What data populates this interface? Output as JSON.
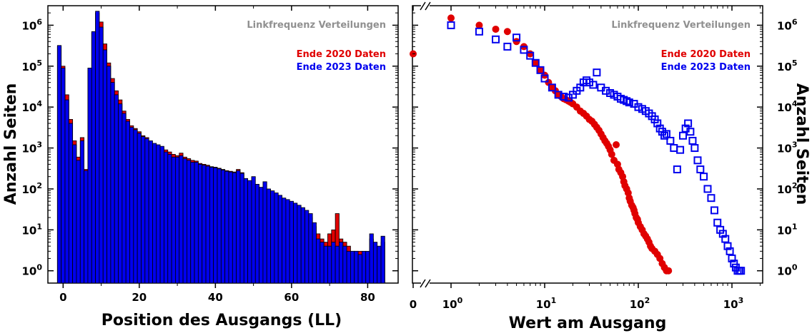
{
  "chart_data": [
    {
      "type": "bar",
      "panel": "left",
      "note": "Linkfrequenz Verteilungen",
      "xlabel": "Position des Ausgangs (LL)",
      "ylabel": "Anzahl Seiten",
      "y_scale": "log",
      "xlim": [
        -4,
        88
      ],
      "ylim": [
        0.5,
        3000000
      ],
      "x_ticks": [
        "0",
        "20",
        "40",
        "60",
        "80"
      ],
      "y_ticks": [
        "10",
        "10",
        "10",
        "10",
        "10",
        "10",
        "10"
      ],
      "y_tick_exponents": [
        "0",
        "1",
        "2",
        "3",
        "4",
        "5",
        "6"
      ],
      "categories": [
        -1,
        0,
        1,
        2,
        3,
        4,
        5,
        6,
        7,
        8,
        9,
        10,
        11,
        12,
        13,
        14,
        15,
        16,
        17,
        18,
        19,
        20,
        21,
        22,
        23,
        24,
        25,
        26,
        27,
        28,
        29,
        30,
        31,
        32,
        33,
        34,
        35,
        36,
        37,
        38,
        39,
        40,
        41,
        42,
        43,
        44,
        45,
        46,
        47,
        48,
        49,
        50,
        51,
        52,
        53,
        54,
        55,
        56,
        57,
        58,
        59,
        60,
        61,
        62,
        63,
        64,
        65,
        66,
        67,
        68,
        69,
        70,
        71,
        72,
        73,
        74,
        75,
        76,
        77,
        78,
        79,
        80,
        81,
        82,
        83,
        84
      ],
      "series": [
        {
          "name": "Ende 2020 Daten",
          "color": "#e00000",
          "values": [
            300000,
            100000,
            20000,
            5000,
            1500,
            600,
            1800,
            300,
            80000,
            650000,
            2000000,
            1200000,
            350000,
            120000,
            50000,
            25000,
            15000,
            8000,
            5000,
            3500,
            3000,
            2500,
            2000,
            1800,
            1300,
            1200,
            1100,
            1000,
            900,
            800,
            700,
            650,
            750,
            600,
            550,
            500,
            480,
            420,
            400,
            380,
            350,
            340,
            320,
            300,
            280,
            270,
            260,
            300,
            250,
            160,
            140,
            130,
            110,
            100,
            100,
            90,
            80,
            70,
            60,
            55,
            50,
            45,
            40,
            35,
            30,
            25,
            20,
            12,
            8,
            6,
            5,
            8,
            10,
            25,
            6,
            5,
            4,
            3,
            3,
            3,
            2.5,
            2.5,
            6,
            4,
            3.5,
            5
          ]
        },
        {
          "name": "Ende 2023 Daten",
          "color": "#0000ee",
          "values": [
            320000,
            90000,
            15000,
            4000,
            1200,
            500,
            1500,
            280,
            90000,
            700000,
            2200000,
            900000,
            250000,
            100000,
            40000,
            20000,
            12000,
            7000,
            4500,
            3200,
            2800,
            2300,
            1900,
            1700,
            1500,
            1300,
            1200,
            1100,
            800,
            700,
            600,
            600,
            650,
            550,
            500,
            450,
            450,
            400,
            380,
            360,
            340,
            330,
            310,
            290,
            270,
            260,
            250,
            280,
            240,
            180,
            160,
            200,
            130,
            110,
            150,
            100,
            90,
            80,
            70,
            60,
            55,
            50,
            45,
            40,
            35,
            30,
            25,
            15,
            6,
            5,
            4,
            4,
            5,
            4,
            5,
            4,
            3,
            3,
            3,
            2.5,
            3,
            3,
            8,
            5,
            4,
            7
          ]
        }
      ]
    },
    {
      "type": "scatter",
      "panel": "right",
      "note": "Linkfrequenz Verteilungen",
      "xlabel": "Wert am Ausgang",
      "ylabel": "Anzahl Seiten",
      "x_scale": "log",
      "y_scale": "log",
      "xlim": [
        0.4,
        2000
      ],
      "ylim": [
        0.5,
        3000000
      ],
      "x_ticks": [
        "0",
        "10",
        "10",
        "10",
        "10"
      ],
      "x_tick_exponents": [
        "",
        "0",
        "1",
        "2",
        "3"
      ],
      "y_ticks": [
        "10",
        "10",
        "10",
        "10",
        "10",
        "10",
        "10"
      ],
      "y_tick_exponents": [
        "0",
        "1",
        "2",
        "3",
        "4",
        "5",
        "6"
      ],
      "series": [
        {
          "name": "Ende 2020 Daten",
          "color": "#e00000",
          "marker": "filled-circle",
          "x": [
            0,
            1,
            2,
            3,
            4,
            5,
            6,
            7,
            8,
            9,
            10,
            11,
            12,
            13,
            14,
            15,
            16,
            17,
            18,
            19,
            20,
            22,
            24,
            26,
            28,
            30,
            32,
            34,
            36,
            38,
            40,
            42,
            44,
            46,
            48,
            50,
            52,
            55,
            58,
            60,
            62,
            65,
            68,
            70,
            72,
            75,
            78,
            80,
            82,
            85,
            88,
            90,
            92,
            95,
            98,
            100,
            105,
            110,
            115,
            120,
            125,
            130,
            135,
            140,
            150,
            160,
            170,
            180,
            190,
            200,
            210
          ],
          "y": [
            200000,
            1500000,
            1000000,
            800000,
            700000,
            400000,
            300000,
            200000,
            120000,
            80000,
            60000,
            40000,
            30000,
            25000,
            20000,
            18000,
            16000,
            15000,
            14000,
            13000,
            12000,
            10000,
            8000,
            7000,
            6000,
            5000,
            4500,
            3800,
            3200,
            2700,
            2200,
            1800,
            1500,
            1300,
            1100,
            900,
            700,
            500,
            1200,
            400,
            300,
            250,
            200,
            150,
            120,
            100,
            80,
            60,
            50,
            40,
            35,
            30,
            25,
            20,
            18,
            15,
            12,
            10,
            8,
            7,
            6,
            5,
            4,
            3.5,
            3,
            2.5,
            2,
            1.5,
            1.2,
            1,
            1
          ]
        },
        {
          "name": "Ende 2023 Daten",
          "color": "#0000ee",
          "marker": "open-square",
          "x": [
            1,
            2,
            3,
            4,
            5,
            6,
            7,
            8,
            9,
            10,
            12,
            14,
            16,
            18,
            20,
            22,
            24,
            26,
            28,
            30,
            33,
            36,
            40,
            45,
            50,
            55,
            60,
            65,
            70,
            75,
            80,
            90,
            100,
            110,
            120,
            130,
            140,
            150,
            160,
            170,
            180,
            190,
            200,
            220,
            240,
            260,
            280,
            300,
            320,
            340,
            360,
            380,
            400,
            430,
            460,
            500,
            550,
            600,
            650,
            700,
            750,
            800,
            850,
            900,
            950,
            1000,
            1050,
            1100,
            1150,
            1200,
            1250
          ],
          "y": [
            1000000,
            700000,
            450000,
            300000,
            500000,
            250000,
            180000,
            120000,
            80000,
            50000,
            30000,
            20000,
            18000,
            17000,
            20000,
            25000,
            30000,
            40000,
            45000,
            40000,
            35000,
            70000,
            30000,
            25000,
            22000,
            20000,
            18000,
            16000,
            15000,
            14000,
            13000,
            12000,
            10000,
            9000,
            8000,
            7000,
            6000,
            5000,
            4000,
            3000,
            2500,
            2000,
            2200,
            1500,
            1000,
            300,
            900,
            2000,
            3000,
            4000,
            2500,
            1500,
            1000,
            500,
            300,
            200,
            100,
            60,
            30,
            15,
            10,
            8,
            6,
            4,
            3,
            2,
            1.5,
            1.2,
            1,
            1,
            1
          ]
        }
      ]
    }
  ]
}
